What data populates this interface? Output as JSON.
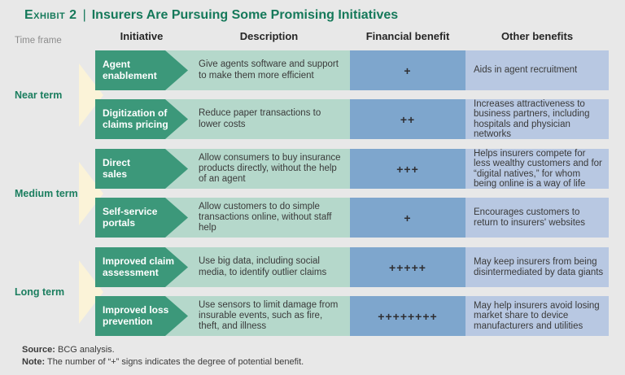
{
  "title": {
    "exhibit_label": "Exhibit 2",
    "separator": "|",
    "text": "Insurers Are Pursuing Some Promising Initiatives"
  },
  "column_headers": {
    "time_frame": "Time frame",
    "initiative": "Initiative",
    "description": "Description",
    "financial_benefit": "Financial benefit",
    "other_benefits": "Other benefits"
  },
  "table": {
    "groups": [
      {
        "time_frame": "Near term",
        "rows": [
          {
            "initiative": "Agent\nenablement",
            "description": "Give agents software and support to make them more efficient",
            "financial_benefit": "+",
            "other_benefits": "Aids in agent recruitment"
          },
          {
            "initiative": "Digitization of\nclaims pricing",
            "description": "Reduce paper transactions to lower costs",
            "financial_benefit": "++",
            "other_benefits": "Increases attractiveness to business partners, including hospitals and physician networks"
          }
        ]
      },
      {
        "time_frame": "Medium term",
        "rows": [
          {
            "initiative": "Direct\nsales",
            "description": "Allow consumers to buy insurance products directly, without the help of an agent",
            "financial_benefit": "+++",
            "other_benefits": "Helps insurers compete for less wealthy customers and for “digital natives,” for whom being online is a way of life"
          },
          {
            "initiative": "Self-service\nportals",
            "description": "Allow customers to do simple transactions online, without staff help",
            "financial_benefit": "+",
            "other_benefits": "Encourages customers to return to insurers' websites"
          }
        ]
      },
      {
        "time_frame": "Long term",
        "rows": [
          {
            "initiative": "Improved claim\nassessment",
            "description": "Use big data, including social media, to identify outlier claims",
            "financial_benefit": "+++++",
            "other_benefits": "May keep insurers from being disintermediated by data giants"
          },
          {
            "initiative": "Improved loss\nprevention",
            "description": "Use sensors to limit damage from insurable events, such as fire, theft, and illness",
            "financial_benefit": "++++++++",
            "other_benefits": "May help insurers avoid losing market share to device manufacturers and utilities"
          }
        ]
      }
    ]
  },
  "footer": {
    "source_label": "Source:",
    "source_text": "BCG analysis.",
    "note_label": "Note:",
    "note_text": "The number of “+” signs indicates the degree of potential benefit."
  },
  "colors": {
    "background": "#e8e8e8",
    "title_green": "#15795a",
    "time_label_green": "#1b7e5f",
    "initiative_green": "#3c987a",
    "description_light_green": "#b5d8cb",
    "financial_blue": "#7ea6cd",
    "other_light_blue": "#b8c8e2",
    "timeframe_arrow_cream": "#fbf3d8",
    "body_text": "#3a3a3a"
  }
}
